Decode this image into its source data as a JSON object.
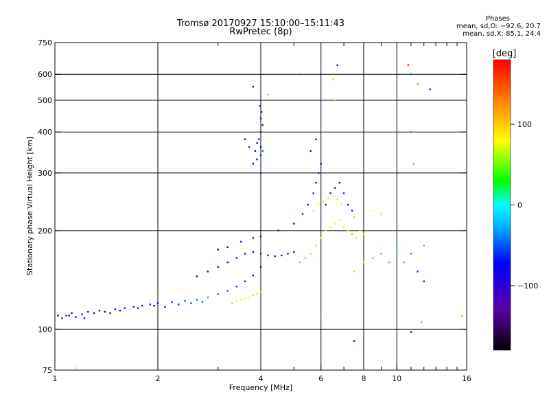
{
  "chart_data": {
    "type": "scatter",
    "title": "Tromsø 20170927 15:10:00–15:11:43",
    "subtitle": "RwPretec (8p)",
    "stats_title": "Phases",
    "stats_o": "mean, sd,O: −92.6, 20.7",
    "stats_x": "mean, sd,X:  85.1, 24.4",
    "xlabel": "Frequency [MHz]",
    "ylabel": "Stationary phase Virtual Height [km]",
    "xscale": "log",
    "yscale": "log",
    "xlim": [
      1,
      16
    ],
    "ylim": [
      75,
      750
    ],
    "xticks": [
      1,
      2,
      4,
      6,
      8,
      10,
      16
    ],
    "yticks": [
      75,
      100,
      200,
      300,
      400,
      500,
      600,
      750
    ],
    "xgrid": [
      2,
      4,
      6,
      8,
      10
    ],
    "xminor": [
      3,
      5,
      7,
      9,
      11,
      12,
      13,
      14,
      15
    ],
    "ygrid": [
      100,
      200,
      300,
      400,
      500,
      600
    ],
    "grid": true,
    "colorbar": {
      "label": "[deg]",
      "range": [
        -180,
        180
      ],
      "ticks": [
        100,
        0,
        -100
      ]
    },
    "series": [
      {
        "name": "",
        "points": [
          [
            1.02,
            110,
            -80
          ],
          [
            1.05,
            108,
            -60
          ],
          [
            1.08,
            110,
            -110
          ],
          [
            1.12,
            112,
            -95
          ],
          [
            1.15,
            109,
            -70
          ],
          [
            1.2,
            111,
            -100
          ],
          [
            1.25,
            113,
            -90
          ],
          [
            1.3,
            112,
            -115
          ],
          [
            1.35,
            114,
            -80
          ],
          [
            1.4,
            113,
            -100
          ],
          [
            1.5,
            115,
            -90
          ],
          [
            1.6,
            116,
            -110
          ],
          [
            1.7,
            117,
            -85
          ],
          [
            1.8,
            118,
            -95
          ],
          [
            1.9,
            119,
            -105
          ],
          [
            2.0,
            120,
            -70
          ],
          [
            2.2,
            121,
            -60
          ],
          [
            2.4,
            122,
            -50
          ],
          [
            2.6,
            123,
            -40
          ],
          [
            2.8,
            125,
            -30
          ],
          [
            3.0,
            128,
            -40
          ],
          [
            3.2,
            131,
            -50
          ],
          [
            3.4,
            135,
            -60
          ],
          [
            3.6,
            140,
            -70
          ],
          [
            3.8,
            146,
            -80
          ],
          [
            4.0,
            155,
            -90
          ],
          [
            1.1,
            110,
            -95
          ],
          [
            1.22,
            108,
            -85
          ],
          [
            1.45,
            112,
            -115
          ],
          [
            1.55,
            114,
            -75
          ],
          [
            1.75,
            116,
            -100
          ],
          [
            1.95,
            118,
            -90
          ],
          [
            2.1,
            117,
            -80
          ],
          [
            2.3,
            119,
            -65
          ],
          [
            2.5,
            120,
            -55
          ],
          [
            2.7,
            121,
            -45
          ],
          [
            3.3,
            120,
            60
          ],
          [
            3.4,
            122,
            70
          ],
          [
            3.5,
            123,
            80
          ],
          [
            3.6,
            124,
            75
          ],
          [
            3.7,
            125,
            85
          ],
          [
            3.8,
            127,
            90
          ],
          [
            3.9,
            128,
            95
          ],
          [
            4.0,
            130,
            100
          ],
          [
            2.6,
            145,
            -110
          ],
          [
            2.8,
            150,
            -105
          ],
          [
            3.0,
            155,
            -100
          ],
          [
            3.2,
            160,
            -110
          ],
          [
            3.4,
            165,
            -115
          ],
          [
            3.6,
            170,
            -100
          ],
          [
            3.8,
            172,
            -105
          ],
          [
            4.0,
            170,
            -95
          ],
          [
            4.2,
            168,
            -100
          ],
          [
            4.4,
            167,
            -110
          ],
          [
            4.6,
            168,
            -105
          ],
          [
            4.8,
            170,
            -100
          ],
          [
            5.0,
            172,
            -90
          ],
          [
            3.0,
            175,
            -85
          ],
          [
            3.2,
            178,
            -95
          ],
          [
            3.5,
            185,
            -90
          ],
          [
            3.8,
            190,
            -100
          ],
          [
            4.0,
            192,
            -95
          ],
          [
            4.5,
            200,
            -85
          ],
          [
            5.0,
            210,
            -90
          ],
          [
            5.3,
            225,
            -100
          ],
          [
            5.5,
            240,
            -95
          ],
          [
            5.7,
            260,
            -105
          ],
          [
            5.8,
            280,
            -110
          ],
          [
            5.9,
            300,
            -100
          ],
          [
            6.0,
            320,
            -100
          ],
          [
            5.6,
            350,
            -95
          ],
          [
            5.8,
            380,
            -90
          ],
          [
            3.8,
            320,
            -70
          ],
          [
            3.9,
            330,
            -80
          ],
          [
            4.0,
            340,
            -60
          ],
          [
            4.05,
            350,
            -50
          ],
          [
            4.0,
            360,
            -75
          ],
          [
            3.95,
            380,
            -65
          ],
          [
            4.0,
            400,
            -85
          ],
          [
            4.05,
            420,
            -95
          ],
          [
            4.0,
            440,
            -100
          ],
          [
            4.02,
            460,
            -90
          ],
          [
            3.98,
            480,
            -80
          ],
          [
            4.0,
            300,
            -60
          ],
          [
            3.85,
            350,
            -90
          ],
          [
            3.9,
            370,
            -70
          ],
          [
            3.7,
            360,
            -60
          ],
          [
            3.6,
            380,
            -75
          ],
          [
            5.2,
            160,
            40
          ],
          [
            5.4,
            165,
            50
          ],
          [
            5.6,
            170,
            60
          ],
          [
            5.8,
            180,
            70
          ],
          [
            6.0,
            190,
            80
          ],
          [
            6.2,
            200,
            85
          ],
          [
            6.4,
            205,
            75
          ],
          [
            6.6,
            210,
            80
          ],
          [
            6.8,
            215,
            90
          ],
          [
            7.0,
            205,
            70
          ],
          [
            7.2,
            200,
            60
          ],
          [
            7.4,
            195,
            50
          ],
          [
            7.6,
            190,
            60
          ],
          [
            7.8,
            200,
            70
          ],
          [
            8.0,
            195,
            65
          ],
          [
            5.7,
            230,
            70
          ],
          [
            5.9,
            240,
            80
          ],
          [
            6.1,
            245,
            90
          ],
          [
            6.3,
            250,
            85
          ],
          [
            6.5,
            255,
            75
          ],
          [
            6.7,
            250,
            80
          ],
          [
            6.9,
            240,
            70
          ],
          [
            6.2,
            240,
            -100
          ],
          [
            6.4,
            260,
            -110
          ],
          [
            6.6,
            270,
            -105
          ],
          [
            6.8,
            280,
            -100
          ],
          [
            7.0,
            260,
            -90
          ],
          [
            7.2,
            240,
            -95
          ],
          [
            7.4,
            230,
            -105
          ],
          [
            7.5,
            150,
            60
          ],
          [
            8.0,
            160,
            70
          ],
          [
            8.5,
            165,
            40
          ],
          [
            9.0,
            170,
            30
          ],
          [
            9.5,
            160,
            20
          ],
          [
            10.0,
            175,
            0
          ],
          [
            10.5,
            160,
            130
          ],
          [
            11.0,
            170,
            150
          ],
          [
            11.5,
            150,
            -60
          ],
          [
            12.0,
            140,
            -80
          ],
          [
            7.5,
            220,
            60
          ],
          [
            8.5,
            230,
            80
          ],
          [
            9.0,
            225,
            70
          ],
          [
            10.0,
            200,
            -40
          ],
          [
            11.0,
            400,
            160
          ],
          [
            11.2,
            320,
            130
          ],
          [
            11.5,
            560,
            130
          ],
          [
            10.8,
            640,
            170
          ],
          [
            11.0,
            600,
            -50
          ],
          [
            12.5,
            540,
            -90
          ],
          [
            6.7,
            640,
            -110
          ],
          [
            5.2,
            600,
            -40
          ],
          [
            3.8,
            550,
            -100
          ],
          [
            4.2,
            520,
            120
          ],
          [
            6.5,
            580,
            100
          ],
          [
            6.6,
            500,
            110
          ],
          [
            15.5,
            110,
            100
          ],
          [
            6.0,
            110,
            120
          ],
          [
            7.5,
            92,
            -80
          ],
          [
            11.0,
            98,
            -100
          ],
          [
            11.8,
            105,
            120
          ],
          [
            12.0,
            180,
            30
          ],
          [
            1.15,
            76,
            90
          ]
        ]
      }
    ]
  }
}
